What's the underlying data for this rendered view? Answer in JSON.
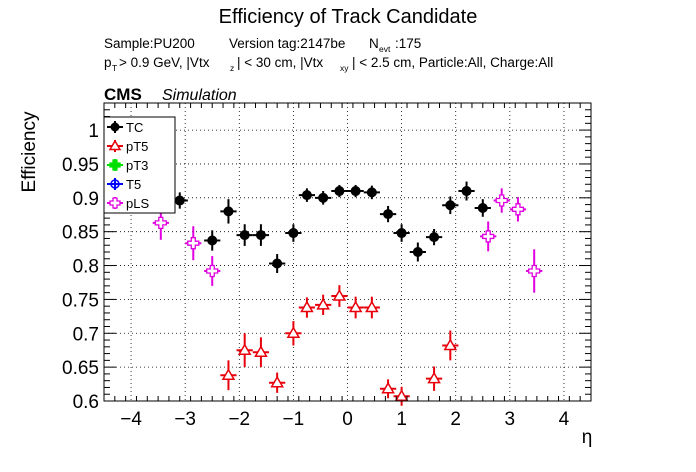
{
  "chart_data": {
    "type": "scatter",
    "title": "Efficiency of Track Candidate",
    "info_line1": {
      "sample": "Sample:PU200",
      "version": "Version tag:2147be",
      "nevt_label": "N",
      "nevt_sub": "evt",
      "nevt_value": ":175"
    },
    "info_line2": {
      "p": "p",
      "p_sub": "T",
      "cut1": " > 0.9 GeV, |Vtx",
      "cut1_sub": "z",
      "cut2": "| < 30 cm, |Vtx",
      "cut2_sub": "xy",
      "cut3": "| < 2.5 cm, Particle:All, Charge:All"
    },
    "cms_label": "CMS",
    "simulation_label": "Simulation",
    "xlabel": "η",
    "ylabel": "Efficiency",
    "xlim": [
      -4.5,
      4.5
    ],
    "ylim": [
      0.6,
      1.04
    ],
    "x_ticks": [
      -4,
      -3,
      -2,
      -1,
      0,
      1,
      2,
      3,
      4
    ],
    "x_tick_labels": [
      "−4",
      "−3",
      "−2",
      "−1",
      "0",
      "1",
      "2",
      "3",
      "4"
    ],
    "y_ticks": [
      0.6,
      0.65,
      0.7,
      0.75,
      0.8,
      0.85,
      0.9,
      0.95,
      1
    ],
    "y_tick_labels": [
      "0.6",
      "0.65",
      "0.7",
      "0.75",
      "0.8",
      "0.85",
      "0.9",
      "0.95",
      "1"
    ],
    "grid": true,
    "legend_position": "top-left",
    "series": [
      {
        "name": "TC",
        "color": "#000000",
        "marker": "circle-filled",
        "x": [
          -3.1,
          -2.5,
          -2.2,
          -1.9,
          -1.6,
          -1.3,
          -1.0,
          -0.75,
          -0.45,
          -0.15,
          0.15,
          0.45,
          0.75,
          1.0,
          1.3,
          1.6,
          1.9,
          2.2,
          2.5
        ],
        "y": [
          0.896,
          0.837,
          0.88,
          0.845,
          0.845,
          0.803,
          0.848,
          0.904,
          0.9,
          0.91,
          0.91,
          0.908,
          0.876,
          0.848,
          0.82,
          0.842,
          0.889,
          0.91,
          0.885
        ],
        "yerr": [
          0.012,
          0.015,
          0.018,
          0.016,
          0.016,
          0.014,
          0.013,
          0.01,
          0.01,
          0.009,
          0.009,
          0.01,
          0.012,
          0.013,
          0.014,
          0.012,
          0.013,
          0.014,
          0.013
        ]
      },
      {
        "name": "pT5",
        "color": "#e8000b",
        "marker": "triangle-open",
        "x": [
          -2.2,
          -1.9,
          -1.6,
          -1.3,
          -1.0,
          -0.75,
          -0.45,
          -0.15,
          0.15,
          0.45,
          0.75,
          1.0,
          1.6,
          1.9
        ],
        "y": [
          0.638,
          0.675,
          0.672,
          0.627,
          0.7,
          0.738,
          0.742,
          0.755,
          0.738,
          0.738,
          0.618,
          0.607,
          0.633,
          0.682
        ],
        "yerr": [
          0.022,
          0.025,
          0.022,
          0.015,
          0.018,
          0.015,
          0.015,
          0.016,
          0.016,
          0.016,
          0.014,
          0.014,
          0.018,
          0.022
        ]
      },
      {
        "name": "pT3",
        "color": "#00e000",
        "marker": "cross-filled",
        "x": [],
        "y": [],
        "yerr": []
      },
      {
        "name": "T5",
        "color": "#0000ff",
        "marker": "circle-open",
        "x": [],
        "y": [],
        "yerr": []
      },
      {
        "name": "pLS",
        "color": "#e000e0",
        "marker": "cross-open",
        "x": [
          -3.45,
          -2.85,
          -2.5,
          2.6,
          2.85,
          3.15,
          3.45
        ],
        "y": [
          0.863,
          0.833,
          0.792,
          0.843,
          0.896,
          0.883,
          0.792
        ],
        "yerr": [
          0.025,
          0.025,
          0.022,
          0.022,
          0.018,
          0.018,
          0.032
        ]
      }
    ]
  }
}
